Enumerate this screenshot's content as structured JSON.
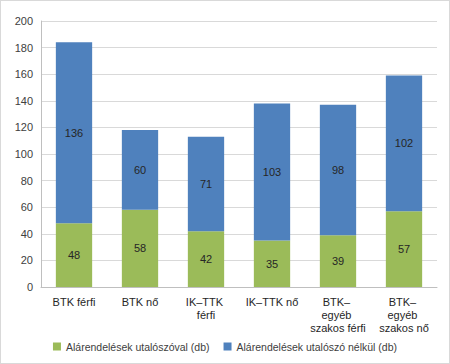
{
  "chart_data": {
    "type": "bar",
    "stacked": true,
    "data_labels": true,
    "grid": true,
    "legend": "bottom",
    "categories": [
      "BTK férfi",
      "BTK nő",
      "IK–TTK férfi",
      "IK–TTK nő",
      "BTK– egyéb szakos férfi",
      "BTK– egyéb szakos nő"
    ],
    "series": [
      {
        "name": "Alárendelések utalószóval (db)",
        "color": "#9bbb59",
        "values": [
          48,
          58,
          42,
          35,
          39,
          57
        ]
      },
      {
        "name": "Alárendelések utalószó nélkül (db)",
        "color": "#4f81bd",
        "values": [
          136,
          60,
          71,
          103,
          98,
          102
        ]
      }
    ],
    "ylim": [
      0,
      200
    ],
    "yticks": [
      0,
      20,
      40,
      60,
      80,
      100,
      120,
      140,
      160,
      180,
      200
    ]
  }
}
